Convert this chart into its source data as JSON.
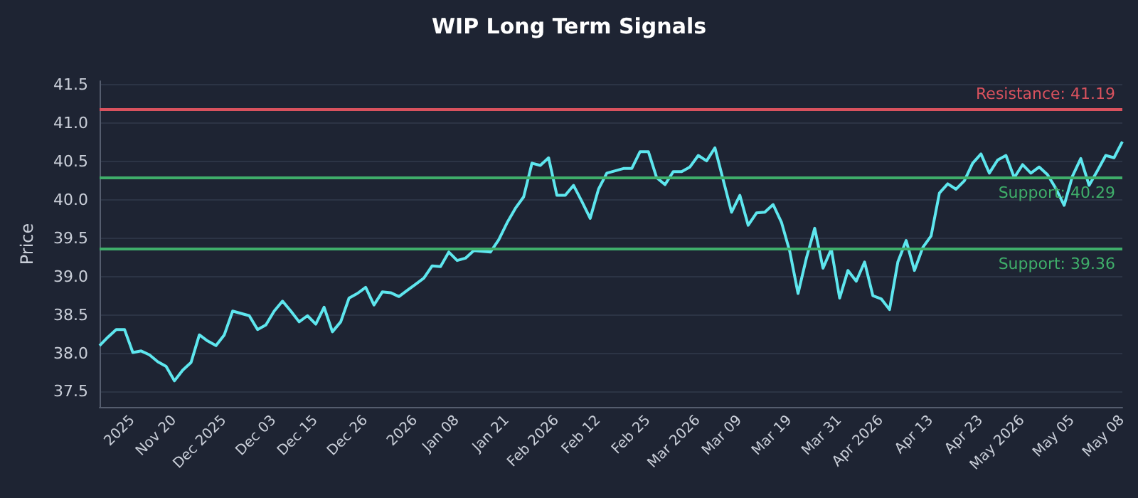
{
  "chart_data": {
    "type": "line",
    "title": "WIP Long Term Signals",
    "ylabel": "Price",
    "categories": [
      null,
      null,
      null,
      null,
      "2025",
      null,
      null,
      null,
      null,
      "Nov 20",
      null,
      null,
      null,
      null,
      null,
      "Dec 2025",
      null,
      null,
      null,
      null,
      null,
      "Dec 03",
      null,
      null,
      null,
      null,
      "Dec 15",
      null,
      null,
      null,
      null,
      null,
      "Dec 26",
      null,
      null,
      null,
      null,
      null,
      "2026",
      null,
      null,
      null,
      null,
      "Jan 08",
      null,
      null,
      null,
      null,
      null,
      "Jan 21",
      null,
      null,
      null,
      null,
      null,
      "Feb 2026",
      null,
      null,
      null,
      null,
      "Feb 12",
      null,
      null,
      null,
      null,
      null,
      "Feb 25",
      null,
      null,
      null,
      null,
      null,
      "Mar 2026",
      null,
      null,
      null,
      null,
      "Mar 09",
      null,
      null,
      null,
      null,
      null,
      "Mar 19",
      null,
      null,
      null,
      null,
      null,
      "Mar 31",
      null,
      null,
      null,
      null,
      "Apr 2026",
      null,
      null,
      null,
      null,
      null,
      "Apr 13",
      null,
      null,
      null,
      null,
      null,
      "Apr 23",
      null,
      null,
      null,
      null,
      "May 2026",
      null,
      null,
      null,
      null,
      null,
      "May 05",
      null,
      null,
      null,
      null,
      null,
      "May 08"
    ],
    "series": [
      {
        "color": "#5ee6ee",
        "values": [
          38.1,
          38.21,
          38.31,
          38.31,
          38.01,
          38.03,
          37.98,
          37.89,
          37.83,
          37.64,
          37.78,
          37.88,
          38.24,
          38.16,
          38.1,
          38.24,
          38.55,
          38.52,
          38.49,
          38.31,
          38.37,
          38.55,
          38.68,
          38.55,
          38.41,
          38.49,
          38.38,
          38.6,
          38.28,
          38.41,
          38.72,
          38.78,
          38.86,
          38.63,
          38.8,
          38.79,
          38.74,
          38.82,
          38.9,
          38.98,
          39.14,
          39.13,
          39.32,
          39.21,
          39.24,
          39.34,
          39.33,
          39.32,
          39.48,
          39.7,
          39.89,
          40.04,
          40.48,
          40.45,
          40.55,
          40.06,
          40.06,
          40.19,
          39.98,
          39.76,
          40.14,
          40.35,
          40.38,
          40.41,
          40.41,
          40.63,
          40.63,
          40.29,
          40.2,
          40.37,
          40.37,
          40.43,
          40.58,
          40.51,
          40.68,
          40.26,
          39.84,
          40.06,
          39.67,
          39.83,
          39.84,
          39.94,
          39.71,
          39.33,
          38.78,
          39.24,
          39.63,
          39.11,
          39.36,
          38.72,
          39.08,
          38.94,
          39.19,
          38.75,
          38.71,
          38.57,
          39.19,
          39.47,
          39.08,
          39.38,
          39.53,
          40.09,
          40.21,
          40.14,
          40.25,
          40.48,
          40.6,
          40.35,
          40.52,
          40.58,
          40.29,
          40.46,
          40.35,
          40.43,
          40.33,
          40.15,
          39.93,
          40.31,
          40.54,
          40.19,
          40.38,
          40.58,
          40.55,
          40.76
        ]
      }
    ],
    "ylim": [
      37.3,
      41.55
    ],
    "yticks": [
      37.5,
      {
        "value": 38,
        "label": "38.0"
      },
      38.5,
      {
        "value": 39,
        "label": "39.0"
      },
      39.5,
      {
        "value": 40,
        "label": "40.0"
      },
      40.5,
      {
        "value": 41,
        "label": "41.0"
      },
      41.5
    ],
    "ref_lines": [
      {
        "axis": "y",
        "value": 41.19,
        "label": "Resistance: 41.19",
        "color": "#d9525e"
      },
      {
        "axis": "y",
        "value": 40.29,
        "label": "Support: 40.29",
        "color": "#3fae6a"
      },
      {
        "axis": "y",
        "value": 39.36,
        "label": "Support: 39.36",
        "color": "#3fae6a"
      }
    ],
    "grid": "y",
    "marker": "none",
    "line_style": "solid"
  }
}
